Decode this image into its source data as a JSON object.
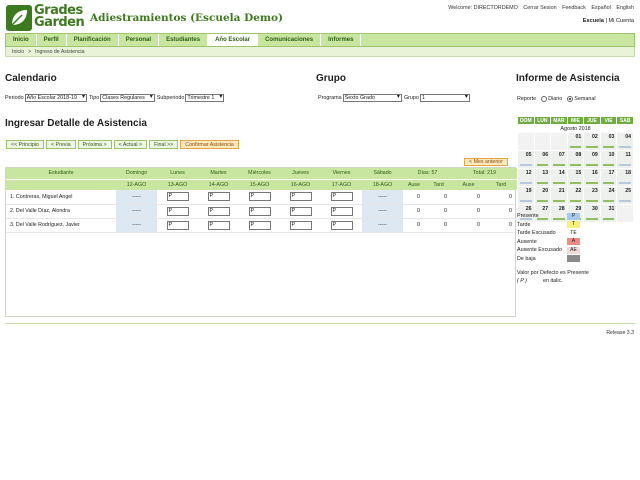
{
  "brand": {
    "line1": "Grades",
    "line2": "Garden",
    "school": "Adiestramientos (Escuela Demo)"
  },
  "top_links": [
    "Welcome: DIRECTORDEMO",
    "Cerrar Sesion",
    "Feedback",
    "Español",
    "English"
  ],
  "account": {
    "school": "Escuela",
    "sep": "|",
    "my_account": "Mi Cuenta"
  },
  "nav": [
    "Inicio",
    "Perfil",
    "Planificación",
    "Personal",
    "Estudiantes",
    "Año Escolar",
    "Comunicaciones",
    "Informes"
  ],
  "nav_active_index": 5,
  "breadcrumb": {
    "home": "Inicio",
    "sep": ">",
    "current": "Ingreso de Asistencia"
  },
  "sections": {
    "calendar": "Calendario",
    "group": "Grupo",
    "report": "Informe de Asistencia",
    "detail": "Ingresar Detalle de Asistencia"
  },
  "filters": {
    "periodo_label": "Periodo",
    "periodo": "Año Escolar 2018-19",
    "tipo_label": "Tipo",
    "tipo": "Clases Regulares",
    "subperiodo_label": "Subperiodo",
    "subperiodo": "Trimestre 1",
    "programa_label": "Programa",
    "programa": "Sexto Grado",
    "grupo_label": "Grupo",
    "grupo": "1"
  },
  "report": {
    "label": "Reporte",
    "daily": "Diario",
    "weekly": "Semanal",
    "selected": "weekly"
  },
  "pager": [
    "<< Principio",
    "< Previa",
    "Próxima >",
    "< Actual >",
    "Final >>",
    "Confirmar Asistencia"
  ],
  "prev_month": "< Mes anterior",
  "table": {
    "student_header": "Estudiante",
    "days": [
      {
        "name": "Domingo",
        "date": "12-AGO"
      },
      {
        "name": "Lunes",
        "date": "13-AGO"
      },
      {
        "name": "Martes",
        "date": "14-AGO"
      },
      {
        "name": "Miércoles",
        "date": "15-AGO"
      },
      {
        "name": "Jueves",
        "date": "16-AGO"
      },
      {
        "name": "Viernes",
        "date": "17-AGO"
      },
      {
        "name": "Sábado",
        "date": "18-AGO"
      }
    ],
    "dias_label": "Días: 57",
    "total_label": "Total: 219",
    "sub_cols": [
      "Ause",
      "Tard",
      "Ause",
      "Tard"
    ],
    "rows": [
      {
        "name": "1. Contreras, Miguel Angel",
        "sun": "-----",
        "entries": [
          "P",
          "P",
          "P",
          "P",
          "P"
        ],
        "sat": "-----",
        "stats": [
          "0",
          "0",
          "0",
          "0"
        ]
      },
      {
        "name": "2. Del Valle Díaz, Alondra",
        "sun": "-----",
        "entries": [
          "P",
          "P",
          "P",
          "P",
          "P"
        ],
        "sat": "-----",
        "stats": [
          "0",
          "0",
          "0",
          "0"
        ]
      },
      {
        "name": "3. Del Valle Rodríguez, Javier",
        "sun": "-----",
        "entries": [
          "P",
          "P",
          "P",
          "P",
          "P"
        ],
        "sat": "-----",
        "stats": [
          "0",
          "0",
          "0",
          "0"
        ]
      }
    ]
  },
  "mini_calendar": {
    "headers": [
      "DOM",
      "LUN",
      "MAR",
      "MIE",
      "JUE",
      "VIE",
      "SAB"
    ],
    "month": "Agosto 2018",
    "weeks": [
      [
        "",
        "",
        "",
        "01",
        "02",
        "03",
        "04"
      ],
      [
        "05",
        "06",
        "07",
        "08",
        "09",
        "10",
        "11"
      ],
      [
        "12",
        "13",
        "14",
        "15",
        "16",
        "17",
        "18"
      ],
      [
        "19",
        "20",
        "21",
        "22",
        "23",
        "24",
        "25"
      ],
      [
        "26",
        "27",
        "28",
        "29",
        "30",
        "31",
        ""
      ]
    ]
  },
  "legend": [
    {
      "label": "Presente",
      "code": "P",
      "color": "#a7c8f0"
    },
    {
      "label": "Tarde",
      "code": "T",
      "color": "#f5f07a"
    },
    {
      "label": "Tarde Excusado",
      "code": "TE",
      "color": "#ffffff"
    },
    {
      "label": "Ausente",
      "code": "A",
      "color": "#f08a80"
    },
    {
      "label": "Ausente Excusado",
      "code": "AE",
      "color": "#f3d9d6"
    },
    {
      "label": "De baja",
      "code": "",
      "color": "#8a8a8a"
    }
  ],
  "note": {
    "line1": "Valor por Defecto es Presente",
    "code": "( P )",
    "rest": "en italic."
  },
  "release": "Release 3.3"
}
